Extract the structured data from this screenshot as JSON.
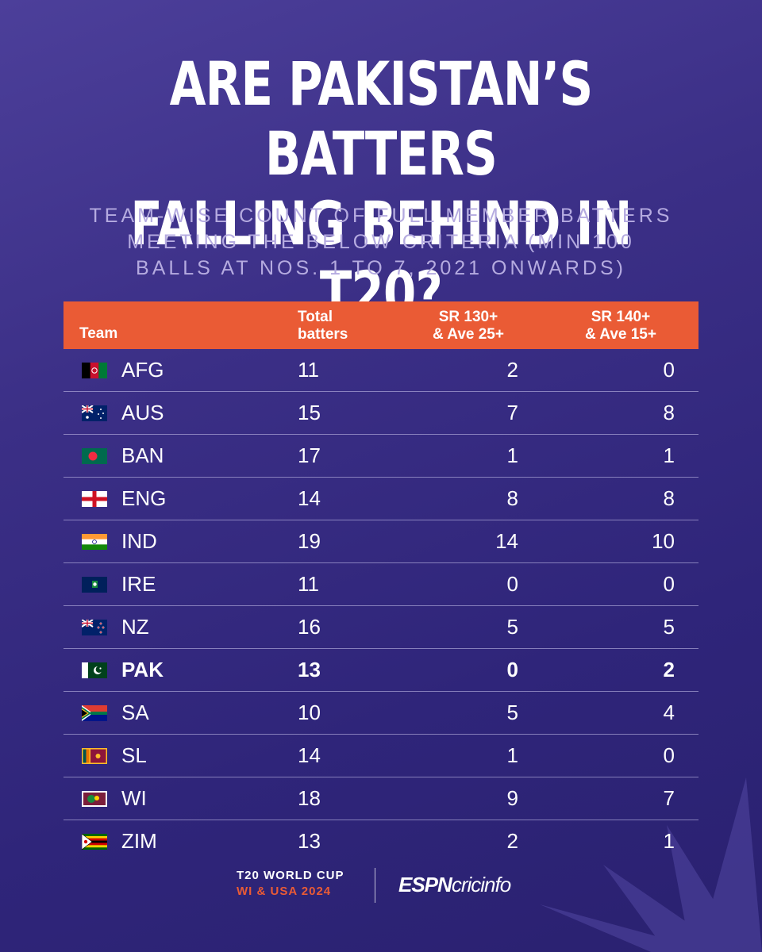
{
  "title_lines": [
    "ARE PAKISTAN’S BATTERS",
    "FALLING BEHIND IN T20?"
  ],
  "subtitle_lines": [
    "TEAM-WISE COUNT OF FULL MEMBER BATTERS",
    "MEETING THE BELOW CRITERIA (MIN 100",
    "BALLS AT NOS. 1 TO 7, 2021 ONWARDS)"
  ],
  "colors": {
    "accent": "#ea5b35",
    "background": "#3b2f86",
    "subtitle": "#b5abe0"
  },
  "chart_data": {
    "type": "table",
    "columns": [
      "Team",
      "Total batters",
      "SR 130+ & Ave 25+",
      "SR 140+ & Ave 15+"
    ],
    "header": {
      "team": "Team",
      "total": [
        "Total",
        "batters"
      ],
      "sr130": [
        "SR 130+",
        "& Ave 25+"
      ],
      "sr140": [
        "SR 140+",
        "& Ave 15+"
      ]
    },
    "highlighted_row": "PAK",
    "rows": [
      {
        "team": "AFG",
        "flag": "afg-flag-icon",
        "total": "11",
        "sr130": "2",
        "sr140": "0"
      },
      {
        "team": "AUS",
        "flag": "aus-flag-icon",
        "total": "15",
        "sr130": "7",
        "sr140": "8"
      },
      {
        "team": "BAN",
        "flag": "ban-flag-icon",
        "total": "17",
        "sr130": "1",
        "sr140": "1"
      },
      {
        "team": "ENG",
        "flag": "eng-flag-icon",
        "total": "14",
        "sr130": "8",
        "sr140": "8"
      },
      {
        "team": "IND",
        "flag": "ind-flag-icon",
        "total": "19",
        "sr130": "14",
        "sr140": "10"
      },
      {
        "team": "IRE",
        "flag": "ire-flag-icon",
        "total": "11",
        "sr130": "0",
        "sr140": "0"
      },
      {
        "team": "NZ",
        "flag": "nz-flag-icon",
        "total": "16",
        "sr130": "5",
        "sr140": "5"
      },
      {
        "team": "PAK",
        "flag": "pak-flag-icon",
        "total": "13",
        "sr130": "0",
        "sr140": "2"
      },
      {
        "team": "SA",
        "flag": "sa-flag-icon",
        "total": "10",
        "sr130": "5",
        "sr140": "4"
      },
      {
        "team": "SL",
        "flag": "sl-flag-icon",
        "total": "14",
        "sr130": "1",
        "sr140": "0"
      },
      {
        "team": "WI",
        "flag": "wi-flag-icon",
        "total": "18",
        "sr130": "9",
        "sr140": "7"
      },
      {
        "team": "ZIM",
        "flag": "zim-flag-icon",
        "total": "13",
        "sr130": "2",
        "sr140": "1"
      }
    ]
  },
  "footer": {
    "event_line1": "T20 WORLD CUP",
    "event_line2": "WI & USA 2024",
    "brand_part1": "ESPN",
    "brand_part2": "cricinfo"
  }
}
